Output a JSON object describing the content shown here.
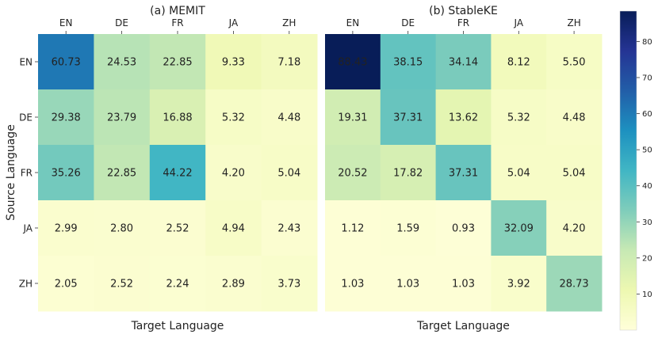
{
  "chart_data": [
    {
      "type": "heatmap",
      "title": "(a) MEMIT",
      "xlabel": "Target Language",
      "ylabel": "Source Language",
      "x_categories": [
        "EN",
        "DE",
        "FR",
        "JA",
        "ZH"
      ],
      "y_categories": [
        "EN",
        "DE",
        "FR",
        "JA",
        "ZH"
      ],
      "values": [
        [
          60.73,
          24.53,
          22.85,
          9.33,
          7.18
        ],
        [
          29.38,
          23.79,
          16.88,
          5.32,
          4.48
        ],
        [
          35.26,
          22.85,
          44.22,
          4.2,
          5.04
        ],
        [
          2.99,
          2.8,
          2.52,
          4.94,
          2.43
        ],
        [
          2.05,
          2.52,
          2.24,
          2.89,
          3.73
        ]
      ]
    },
    {
      "type": "heatmap",
      "title": "(b) StableKE",
      "xlabel": "Target Language",
      "ylabel": "",
      "x_categories": [
        "EN",
        "DE",
        "FR",
        "JA",
        "ZH"
      ],
      "y_categories": [
        "EN",
        "DE",
        "FR",
        "JA",
        "ZH"
      ],
      "values": [
        [
          88.43,
          38.15,
          34.14,
          8.12,
          5.5
        ],
        [
          19.31,
          37.31,
          13.62,
          5.32,
          4.48
        ],
        [
          20.52,
          17.82,
          37.31,
          5.04,
          5.04
        ],
        [
          1.12,
          1.59,
          0.93,
          32.09,
          4.2
        ],
        [
          1.03,
          1.03,
          1.03,
          3.92,
          28.73
        ]
      ]
    }
  ],
  "colorbar": {
    "colormap": "YlGnBu",
    "range": [
      0,
      88.43
    ],
    "ticks": [
      10,
      20,
      30,
      40,
      50,
      60,
      70,
      80
    ]
  }
}
